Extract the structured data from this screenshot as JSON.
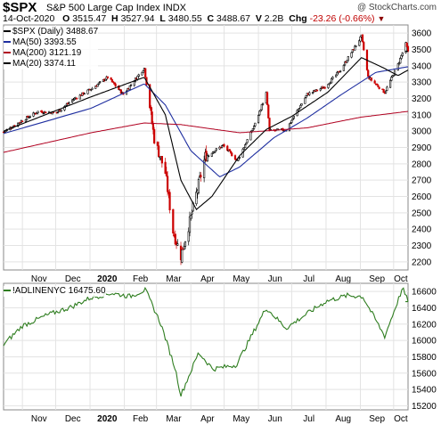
{
  "header": {
    "symbol": "$SPX",
    "name": "S&P 500 Large Cap Index",
    "exchange": "INDX",
    "watermark": "@ StockCharts.com",
    "date": "14-Oct-2020",
    "open_label": "O",
    "open": "3515.47",
    "high_label": "H",
    "high": "3527.94",
    "low_label": "L",
    "low": "3480.55",
    "close_label": "C",
    "close": "3488.67",
    "volume_label": "V",
    "volume": "2.2B",
    "change_label": "Chg",
    "change": "-23.26 (-0.66%)"
  },
  "legend_top": [
    {
      "label": "$SPX (Daily) 3488.67",
      "color": "#000000"
    },
    {
      "label": "MA(50) 3393.55",
      "color": "#1f2fa0"
    },
    {
      "label": "MA(200) 3121.19",
      "color": "#b00020"
    },
    {
      "label": "MA(20) 3374.11",
      "color": "#000000"
    }
  ],
  "legend_bottom": {
    "label": "!ADLINENYC 16475.60",
    "color": "#2e7d1f"
  },
  "colors": {
    "up": "#000000",
    "down": "#cc0000",
    "ma50": "#1f2fa0",
    "ma200": "#b00020",
    "ma20": "#000000",
    "adline": "#2e7d1f"
  },
  "chart_data": [
    {
      "type": "line",
      "title": "$SPX S&P 500 Large Cap Index INDX",
      "series": [
        {
          "name": "$SPX (Daily)",
          "x": [
            "2019-10-15",
            "2019-11-01",
            "2019-11-15",
            "2019-12-02",
            "2019-12-16",
            "2020-01-02",
            "2020-01-17",
            "2020-01-31",
            "2020-02-19",
            "2020-02-28",
            "2020-03-09",
            "2020-03-16",
            "2020-03-23",
            "2020-04-01",
            "2020-04-14",
            "2020-04-30",
            "2020-05-13",
            "2020-05-29",
            "2020-06-08",
            "2020-06-11",
            "2020-06-26",
            "2020-07-15",
            "2020-07-31",
            "2020-08-14",
            "2020-09-02",
            "2020-09-08",
            "2020-09-23",
            "2020-10-05",
            "2020-10-12",
            "2020-10-14"
          ],
          "values": [
            2995,
            3066,
            3120,
            3113,
            3191,
            3258,
            3330,
            3225,
            3386,
            2954,
            2746,
            2386,
            2237,
            2470,
            2846,
            2912,
            2820,
            3044,
            3232,
            3002,
            3009,
            3226,
            3271,
            3373,
            3580,
            3331,
            3237,
            3408,
            3534,
            3489
          ]
        },
        {
          "name": "MA(50)",
          "x": [
            "2019-10-15",
            "2020-01-02",
            "2020-02-19",
            "2020-03-09",
            "2020-04-01",
            "2020-04-27",
            "2020-05-15",
            "2020-06-15",
            "2020-07-15",
            "2020-08-14",
            "2020-09-15",
            "2020-10-14"
          ],
          "values": [
            2985,
            3140,
            3290,
            3160,
            2880,
            2720,
            2780,
            2960,
            3080,
            3220,
            3360,
            3394
          ]
        },
        {
          "name": "MA(200)",
          "x": [
            "2019-10-15",
            "2020-01-02",
            "2020-02-19",
            "2020-03-23",
            "2020-05-15",
            "2020-07-15",
            "2020-09-01",
            "2020-10-14"
          ],
          "values": [
            2870,
            2990,
            3050,
            3040,
            2990,
            3020,
            3085,
            3121
          ]
        },
        {
          "name": "MA(20)",
          "x": [
            "2019-10-15",
            "2020-01-02",
            "2020-02-19",
            "2020-03-09",
            "2020-03-23",
            "2020-04-06",
            "2020-04-20",
            "2020-05-15",
            "2020-06-08",
            "2020-07-01",
            "2020-08-03",
            "2020-09-02",
            "2020-09-21",
            "2020-10-05",
            "2020-10-14"
          ],
          "values": [
            3000,
            3210,
            3330,
            3100,
            2700,
            2520,
            2600,
            2850,
            3010,
            3090,
            3240,
            3450,
            3390,
            3340,
            3374
          ]
        }
      ],
      "ylim": [
        2150,
        3650
      ],
      "y_ticks": [
        2200,
        2300,
        2400,
        2500,
        2600,
        2700,
        2800,
        2900,
        3000,
        3100,
        3200,
        3300,
        3400,
        3500,
        3600
      ],
      "x_labels": [
        "Nov",
        "Dec",
        "2020",
        "Feb",
        "Mar",
        "Apr",
        "May",
        "Jun",
        "Jul",
        "Aug",
        "Sep",
        "Oct"
      ],
      "grid": true,
      "legend": "top-left"
    },
    {
      "type": "line",
      "series": [
        {
          "name": "!ADLINENYC",
          "x": [
            "2019-10-15",
            "2019-11-01",
            "2019-11-25",
            "2019-12-15",
            "2020-01-01",
            "2020-01-20",
            "2020-02-06",
            "2020-02-20",
            "2020-03-05",
            "2020-03-18",
            "2020-03-23",
            "2020-04-08",
            "2020-04-21",
            "2020-05-12",
            "2020-06-08",
            "2020-06-26",
            "2020-07-15",
            "2020-08-01",
            "2020-08-20",
            "2020-09-03",
            "2020-09-23",
            "2020-10-09",
            "2020-10-14"
          ],
          "values": [
            15950,
            16180,
            16320,
            16410,
            16520,
            16580,
            16540,
            16620,
            16200,
            15650,
            15330,
            15850,
            15650,
            15700,
            16400,
            16150,
            16330,
            16480,
            16550,
            16540,
            16050,
            16640,
            16476
          ]
        }
      ],
      "ylim": [
        15150,
        16700
      ],
      "y_ticks": [
        15200,
        15400,
        15600,
        15800,
        16000,
        16200,
        16400,
        16600
      ],
      "x_labels": [
        "Nov",
        "Dec",
        "2020",
        "Feb",
        "Mar",
        "Apr",
        "May",
        "Jun",
        "Jul",
        "Aug",
        "Sep",
        "Oct"
      ],
      "grid": true,
      "legend": "top-left"
    }
  ]
}
